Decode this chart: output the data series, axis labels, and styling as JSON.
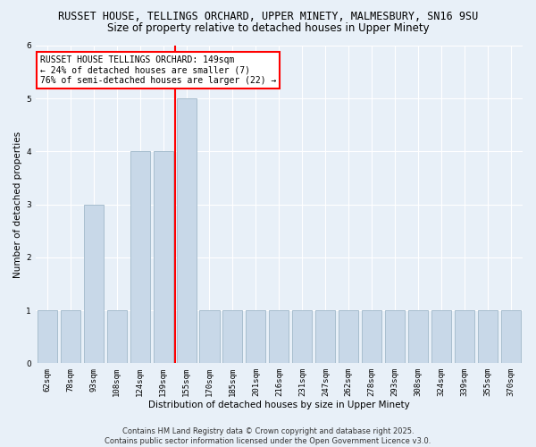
{
  "title1": "RUSSET HOUSE, TELLINGS ORCHARD, UPPER MINETY, MALMESBURY, SN16 9SU",
  "title2": "Size of property relative to detached houses in Upper Minety",
  "xlabel": "Distribution of detached houses by size in Upper Minety",
  "ylabel": "Number of detached properties",
  "categories": [
    "62sqm",
    "78sqm",
    "93sqm",
    "108sqm",
    "124sqm",
    "139sqm",
    "155sqm",
    "170sqm",
    "185sqm",
    "201sqm",
    "216sqm",
    "231sqm",
    "247sqm",
    "262sqm",
    "278sqm",
    "293sqm",
    "308sqm",
    "324sqm",
    "339sqm",
    "355sqm",
    "370sqm"
  ],
  "values": [
    1,
    1,
    3,
    1,
    4,
    4,
    5,
    1,
    1,
    1,
    1,
    1,
    1,
    1,
    1,
    1,
    1,
    1,
    1,
    1,
    1
  ],
  "bar_color": "#c8d8e8",
  "bar_edge_color": "#a8bece",
  "vline_x_index": 5,
  "vline_color": "red",
  "annotation_text": "RUSSET HOUSE TELLINGS ORCHARD: 149sqm\n← 24% of detached houses are smaller (7)\n76% of semi-detached houses are larger (22) →",
  "annotation_box_color": "white",
  "annotation_box_edge_color": "red",
  "ylim": [
    0,
    6
  ],
  "yticks": [
    0,
    1,
    2,
    3,
    4,
    5,
    6
  ],
  "background_color": "#e8f0f8",
  "footer1": "Contains HM Land Registry data © Crown copyright and database right 2025.",
  "footer2": "Contains public sector information licensed under the Open Government Licence v3.0.",
  "title_fontsize": 8.5,
  "subtitle_fontsize": 8.5,
  "tick_fontsize": 6.5,
  "label_fontsize": 7.5,
  "annotation_fontsize": 7,
  "footer_fontsize": 6
}
